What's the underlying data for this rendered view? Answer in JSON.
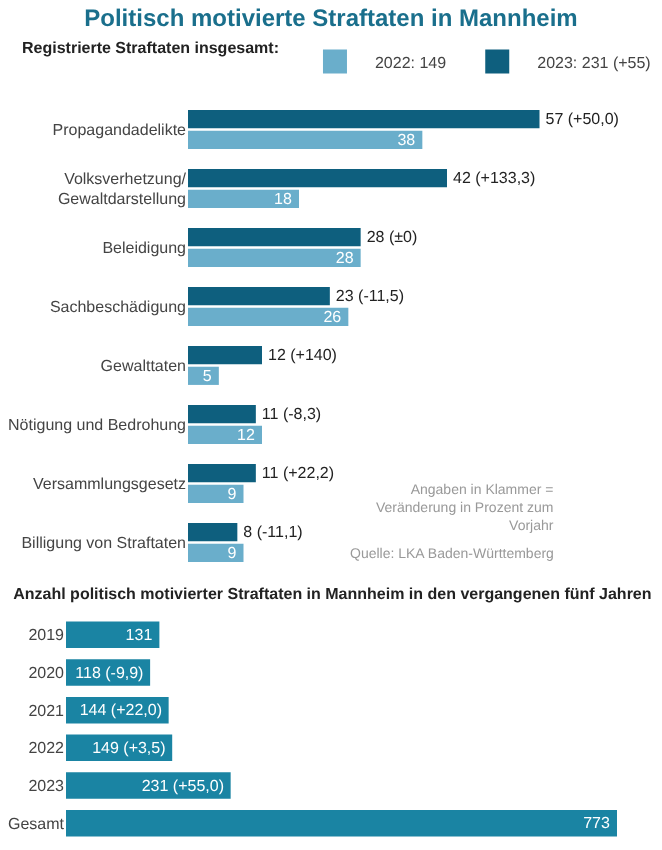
{
  "chart_data": [
    {
      "type": "bar",
      "orientation": "horizontal",
      "title": "Politisch motivierte Straftaten in Mannheim",
      "legend_title": "Registrierte Straftaten insgesamt:",
      "legend": "top",
      "categories": [
        "Propagandadelikte",
        "Volksverhetzung/ Gewaltdarstellung",
        "Beleidigung",
        "Sachbeschädigung",
        "Gewalttaten",
        "Nötigung und Bedrohung",
        "Versammlungsgesetz",
        "Billigung von Straftaten"
      ],
      "series": [
        {
          "name": "2022: 149",
          "color": "#6aaecb",
          "values": [
            38,
            18,
            28,
            26,
            5,
            12,
            9,
            9
          ],
          "value_labels": [
            "38",
            "18",
            "28",
            "26",
            "5",
            "12",
            "9",
            "9"
          ]
        },
        {
          "name": "2023: 231 (+55)",
          "color": "#0e5f7e",
          "values": [
            57,
            42,
            28,
            23,
            12,
            11,
            11,
            8
          ],
          "value_labels": [
            "57 (+50,0)",
            "42 (+133,3)",
            "28 (±0)",
            "23 (-11,5)",
            "12 (+140)",
            "11 (-8,3)",
            "11 (+22,2)",
            "8 (-11,1)"
          ]
        }
      ],
      "annotations": [
        "Angaben in Klammer = Veränderung in Prozent zum Vorjahr",
        "Quelle: LKA Baden-Württemberg"
      ]
    },
    {
      "type": "bar",
      "orientation": "horizontal",
      "title": "Anzahl politisch motivierter Straftaten in Mannheim in den vergangenen fünf Jahren",
      "categories": [
        "2019",
        "2020",
        "2021",
        "2022",
        "2023",
        "Gesamt"
      ],
      "series": [
        {
          "color": "#1a84a3",
          "values": [
            131,
            118,
            144,
            149,
            231,
            773
          ],
          "value_labels": [
            "131",
            "118 (-9,9)",
            "144 (+22,0)",
            "149 (+3,5)",
            "231 (+55,0)",
            "773"
          ]
        }
      ]
    }
  ]
}
